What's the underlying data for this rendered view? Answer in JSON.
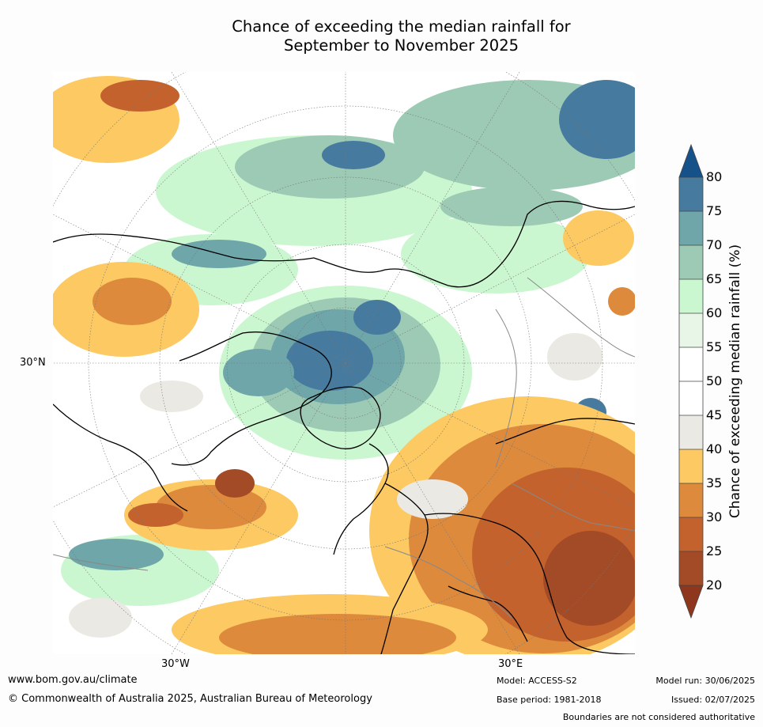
{
  "title_line1": "Chance of exceeding the median rainfall for",
  "title_line2": "September to November 2025",
  "map": {
    "projection": "north-polar-stereographic",
    "lat_label": "30°N",
    "lon_labels": [
      "30°W",
      "30°E"
    ]
  },
  "colorbar": {
    "label": "Chance of exceeding median rainfall (%)",
    "ticks": [
      "80",
      "75",
      "70",
      "65",
      "60",
      "55",
      "50",
      "45",
      "40",
      "35",
      "30",
      "25",
      "20"
    ],
    "colors": {
      "above_80": "#16518a",
      "75_80": "#467a9e",
      "70_75": "#6ea6a9",
      "65_70": "#9ccab4",
      "60_65": "#cbf7d0",
      "55_60": "#e8f6e8",
      "50_55": "#ffffff",
      "45_50": "#ffffff",
      "40_45": "#ebe9e3",
      "35_40": "#fcc963",
      "30_35": "#dd8a3c",
      "25_30": "#c4622e",
      "20_25": "#a34a27",
      "below_20": "#8f371c"
    }
  },
  "footer": {
    "url": "www.bom.gov.au/climate",
    "copyright": "© Commonwealth of Australia 2025, Australian Bureau of Meteorology",
    "model": "Model: ACCESS-S2",
    "base_period": "Base period: 1981-2018",
    "model_run": "Model run: 30/06/2025",
    "issued": "Issued: 02/07/2025",
    "disclaimer": "Boundaries are not considered authoritative"
  }
}
